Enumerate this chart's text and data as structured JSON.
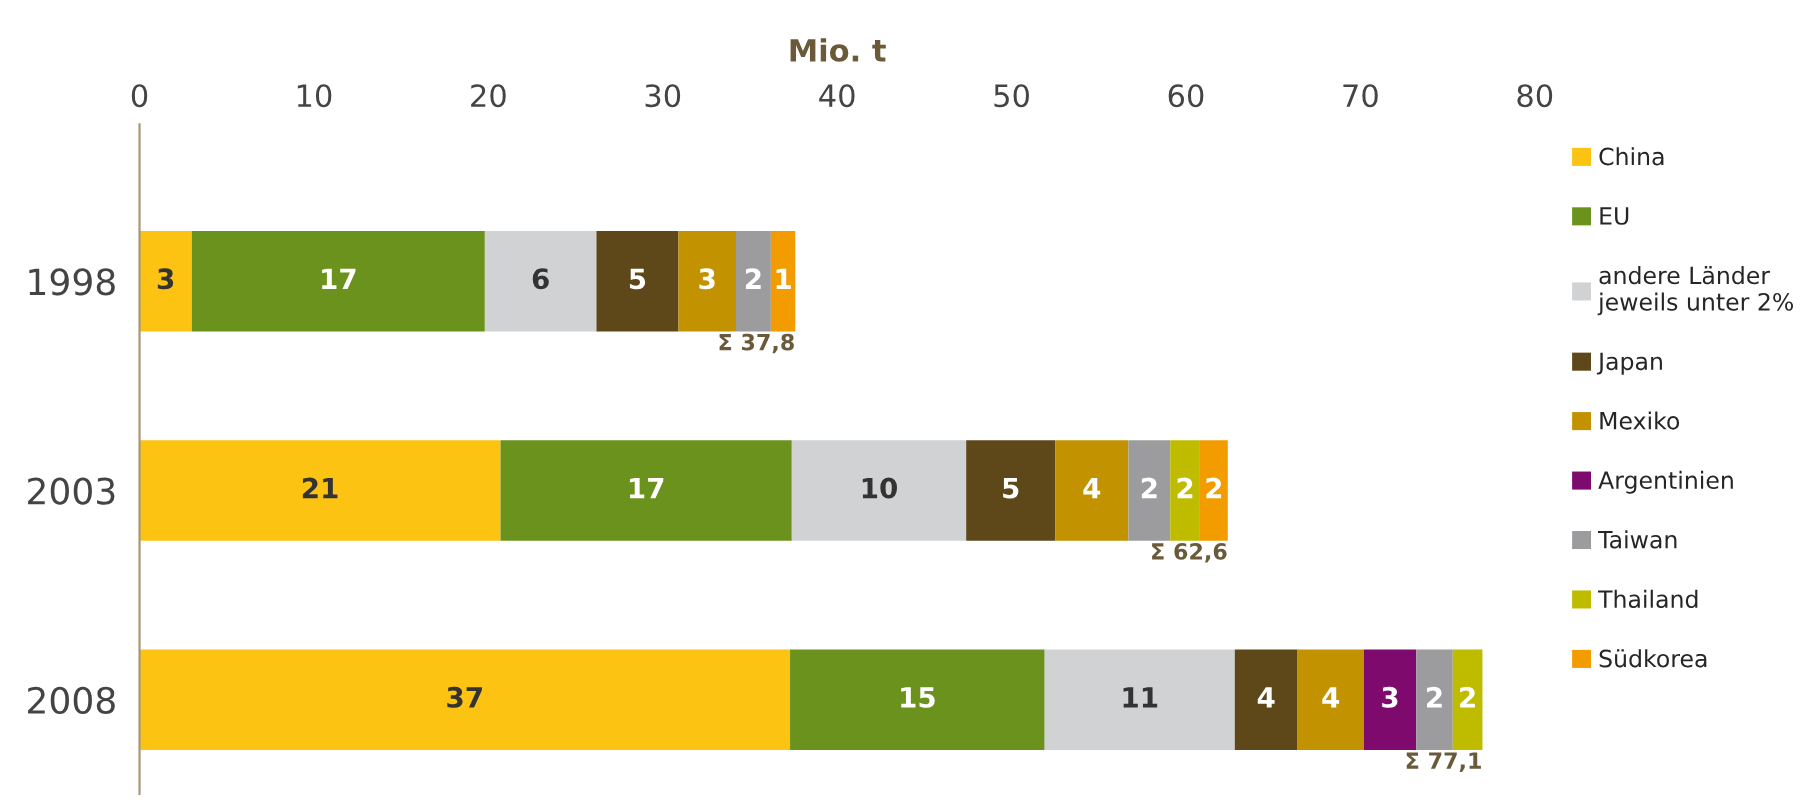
{
  "chart_data": {
    "type": "bar",
    "orientation": "horizontal",
    "stacked": true,
    "xlabel": "Mio. t",
    "categories": [
      "1998",
      "2003",
      "2008"
    ],
    "xlim": [
      0,
      80
    ],
    "xticks": [
      0,
      10,
      20,
      30,
      40,
      50,
      60,
      70,
      80
    ],
    "grid": false,
    "legend": "right",
    "series": [
      {
        "name": "China",
        "color": "#fcc312",
        "values": [
          3.0,
          20.7,
          37.3
        ],
        "value_labels": [
          "3",
          "21",
          "37"
        ]
      },
      {
        "name": "EU",
        "color": "#6a921d",
        "values": [
          16.8,
          16.7,
          14.6
        ],
        "value_labels": [
          "17",
          "17",
          "15"
        ]
      },
      {
        "name": "andere Länder\njeweils unter 2%",
        "color": "#d1d2d4",
        "values": [
          6.4,
          10.0,
          10.9
        ],
        "value_labels": [
          "6",
          "10",
          "11"
        ]
      },
      {
        "name": "Japan",
        "color": "#5e4719",
        "values": [
          4.7,
          5.1,
          3.6
        ],
        "value_labels": [
          "5",
          "5",
          "4"
        ]
      },
      {
        "name": "Mexiko",
        "color": "#c29200",
        "values": [
          3.3,
          4.2,
          3.8
        ],
        "value_labels": [
          "3",
          "4",
          "4"
        ]
      },
      {
        "name": "Argentinien",
        "color": "#7d0a6c",
        "values": [
          null,
          null,
          3.0
        ],
        "value_labels": [
          null,
          null,
          "3"
        ]
      },
      {
        "name": "Taiwan",
        "color": "#9c9c9e",
        "values": [
          2.0,
          2.4,
          2.1
        ],
        "value_labels": [
          "2",
          "2",
          "2"
        ]
      },
      {
        "name": "Thailand",
        "color": "#bfbc00",
        "values": [
          null,
          1.7,
          1.7
        ],
        "value_labels": [
          null,
          "2",
          "2"
        ]
      },
      {
        "name": "Südkorea",
        "color": "#f39c00",
        "values": [
          1.4,
          1.6,
          null
        ],
        "value_labels": [
          "1",
          "2",
          null
        ]
      }
    ],
    "totals": [
      "Σ 37,8",
      "Σ 62,6",
      "Σ 77,1"
    ]
  }
}
